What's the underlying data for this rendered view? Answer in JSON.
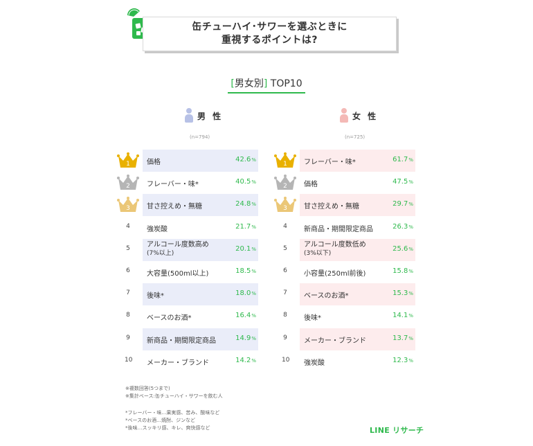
{
  "title": {
    "line1": "缶チューハイ･サワーを選ぶときに",
    "line2": "重視するポイントは?"
  },
  "subtitle": {
    "bracket_open": "[",
    "gender_text": "男女別",
    "bracket_close": "]",
    "top": " TOP10"
  },
  "colors": {
    "accent": "#2eb94c",
    "male_row": "#eaedf9",
    "female_row": "#fdeced",
    "gold": "#e9b100",
    "silver": "#b5b5b5",
    "bronze": "#ebc777"
  },
  "male": {
    "label": "男 性",
    "n": "(n=794)",
    "rows": [
      {
        "rank": "1",
        "item": "価格",
        "item_sub": "",
        "value": "42.6",
        "unit": "%"
      },
      {
        "rank": "2",
        "item": "フレーバー・味*",
        "item_sub": "",
        "value": "40.5",
        "unit": "%"
      },
      {
        "rank": "3",
        "item": "甘さ控えめ・無糖",
        "item_sub": "",
        "value": "24.8",
        "unit": "%"
      },
      {
        "rank": "4",
        "item": "強炭酸",
        "item_sub": "",
        "value": "21.7",
        "unit": "%"
      },
      {
        "rank": "5",
        "item": "アルコール度数高め",
        "item_sub": "(7%以上)",
        "value": "20.1",
        "unit": "%"
      },
      {
        "rank": "6",
        "item": "大容量(500ml以上)",
        "item_sub": "",
        "value": "18.5",
        "unit": "%"
      },
      {
        "rank": "7",
        "item": "後味*",
        "item_sub": "",
        "value": "18.0",
        "unit": "%"
      },
      {
        "rank": "8",
        "item": "ベースのお酒*",
        "item_sub": "",
        "value": "16.4",
        "unit": "%"
      },
      {
        "rank": "9",
        "item": "新商品・期間限定商品",
        "item_sub": "",
        "value": "14.9",
        "unit": "%"
      },
      {
        "rank": "10",
        "item": "メーカー・ブランド",
        "item_sub": "",
        "value": "14.2",
        "unit": "%"
      }
    ]
  },
  "female": {
    "label": "女 性",
    "n": "(n=725)",
    "rows": [
      {
        "rank": "1",
        "item": "フレーバー・味*",
        "item_sub": "",
        "value": "61.7",
        "unit": "%"
      },
      {
        "rank": "2",
        "item": "価格",
        "item_sub": "",
        "value": "47.5",
        "unit": "%"
      },
      {
        "rank": "3",
        "item": "甘さ控えめ・無糖",
        "item_sub": "",
        "value": "29.7",
        "unit": "%"
      },
      {
        "rank": "4",
        "item": "新商品・期間限定商品",
        "item_sub": "",
        "value": "26.3",
        "unit": "%"
      },
      {
        "rank": "5",
        "item": "アルコール度数低め",
        "item_sub": "(3%以下)",
        "value": "25.6",
        "unit": "%"
      },
      {
        "rank": "6",
        "item": "小容量(250ml前後)",
        "item_sub": "",
        "value": "15.8",
        "unit": "%"
      },
      {
        "rank": "7",
        "item": "ベースのお酒*",
        "item_sub": "",
        "value": "15.3",
        "unit": "%"
      },
      {
        "rank": "8",
        "item": "後味*",
        "item_sub": "",
        "value": "14.1",
        "unit": "%"
      },
      {
        "rank": "9",
        "item": "メーカー・ブランド",
        "item_sub": "",
        "value": "13.7",
        "unit": "%"
      },
      {
        "rank": "10",
        "item": "強炭酸",
        "item_sub": "",
        "value": "12.3",
        "unit": "%"
      }
    ]
  },
  "notes": {
    "a1": "※複数回答(5つまで)",
    "a2": "※集計ベース:缶チューハイ・サワーを飲む人",
    "b1": "*フレーバー・味…果実感、苦み、酸味など",
    "b2": "*ベースのお酒…焼酎、ジンなど",
    "b3": "*後味…スッキリ感、キレ、爽快感など"
  },
  "brand": "LINE リサーチ"
}
